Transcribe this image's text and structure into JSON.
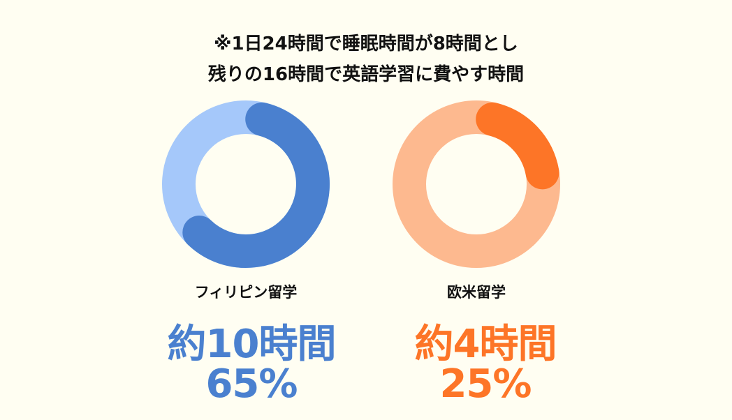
{
  "title_lines": [
    "※1日24時間で睡眠時間が8時間とし",
    "残りの16時間で英語学習に費やす時間"
  ],
  "chart_data": [
    {
      "type": "pie",
      "variant": "donut",
      "label": "フィリピン留学",
      "hours_text": "約10時間",
      "percent_text": "65%",
      "value": 65,
      "color": "#4a80cf",
      "track_color": "#a5c8fa"
    },
    {
      "type": "pie",
      "variant": "donut",
      "label": "欧米留学",
      "hours_text": "約4時間",
      "percent_text": "25%",
      "value": 25,
      "color": "#fd7527",
      "track_color": "#fdb98f"
    }
  ]
}
